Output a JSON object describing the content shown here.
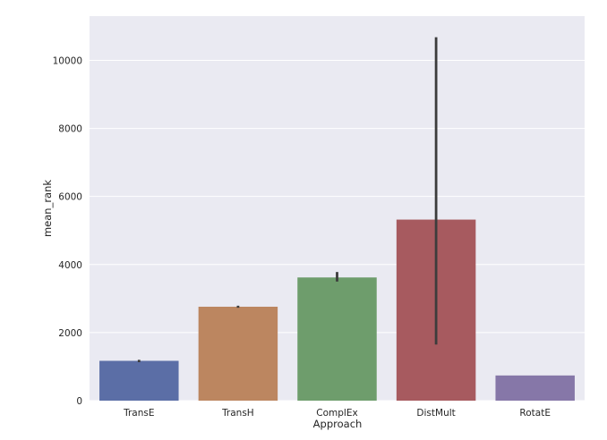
{
  "chart_data": {
    "type": "bar",
    "categories": [
      "TransE",
      "TransH",
      "ComplEx",
      "DistMult",
      "RotatE"
    ],
    "values": [
      1170,
      2760,
      3620,
      5320,
      740
    ],
    "error_bars": [
      {
        "low": 1130,
        "high": 1200
      },
      {
        "low": 2730,
        "high": 2790
      },
      {
        "low": 3500,
        "high": 3780
      },
      {
        "low": 1650,
        "high": 10680
      },
      {
        "low": 740,
        "high": 740
      }
    ],
    "colors": [
      "#5b6ea6",
      "#bc8660",
      "#6e9d6c",
      "#a75a5f",
      "#8677a8"
    ],
    "errorbar_color": "#3c3c3c",
    "title": "",
    "xlabel": "Approach",
    "ylabel": "mean_rank",
    "ylim": [
      0,
      11300
    ],
    "yticks": [
      0,
      2000,
      4000,
      6000,
      8000,
      10000
    ],
    "grid": true,
    "legend": "none",
    "background": "#eaeaf2"
  }
}
